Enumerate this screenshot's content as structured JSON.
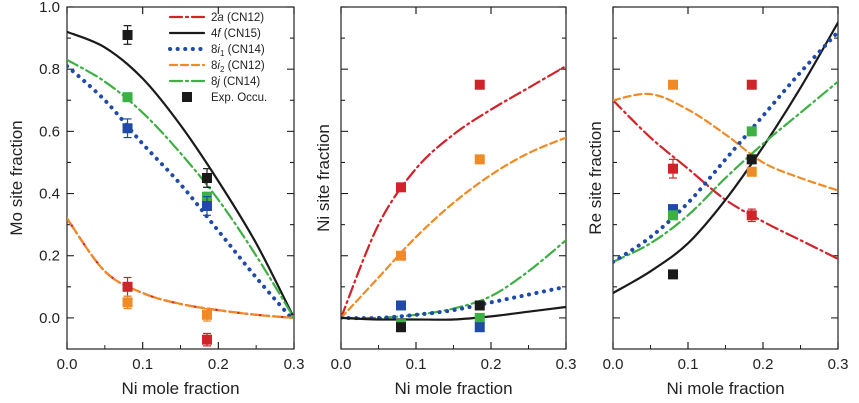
{
  "chart_data": [
    {
      "type": "line",
      "xlabel": "Ni mole fraction",
      "ylabel": "Mo site fraction",
      "xlim": [
        0.0,
        0.3
      ],
      "ylim": [
        -0.1,
        1.0
      ],
      "xticks": [
        "0.0",
        "0.1",
        "0.2",
        "0.3"
      ],
      "yticks": [
        "0.0",
        "0.2",
        "0.4",
        "0.6",
        "0.8",
        "1.0"
      ],
      "series": [
        {
          "name": "4f (CN15)",
          "key": "4f",
          "color": "#1a1a1a",
          "dash": "solid",
          "x": [
            0.0,
            0.05,
            0.1,
            0.15,
            0.2,
            0.25,
            0.3
          ],
          "y": [
            0.92,
            0.87,
            0.77,
            0.62,
            0.44,
            0.24,
            0.0
          ]
        },
        {
          "name": "8j (CN14)",
          "key": "8j",
          "color": "#3cb043",
          "dash": "dashdot",
          "x": [
            0.0,
            0.05,
            0.1,
            0.15,
            0.2,
            0.25,
            0.3
          ],
          "y": [
            0.83,
            0.76,
            0.66,
            0.53,
            0.38,
            0.2,
            0.0
          ]
        },
        {
          "name": "8i1 (CN14)",
          "key": "8i1",
          "color": "#1f4aa8",
          "dash": "dotted",
          "x": [
            0.0,
            0.05,
            0.1,
            0.15,
            0.2,
            0.25,
            0.3
          ],
          "y": [
            0.81,
            0.7,
            0.56,
            0.43,
            0.28,
            0.13,
            -0.01
          ]
        },
        {
          "name": "2a (CN12)",
          "key": "2a",
          "color": "#d0232a",
          "dash": "dashdot",
          "x": [
            0.0,
            0.05,
            0.1,
            0.15,
            0.2,
            0.25,
            0.3
          ],
          "y": [
            0.32,
            0.15,
            0.08,
            0.045,
            0.025,
            0.01,
            0.0
          ]
        },
        {
          "name": "8i2 (CN12)",
          "key": "8i2",
          "color": "#f08a24",
          "dash": "dashed",
          "x": [
            0.0,
            0.05,
            0.1,
            0.15,
            0.2,
            0.25,
            0.3
          ],
          "y": [
            0.32,
            0.15,
            0.08,
            0.045,
            0.025,
            0.01,
            0.0
          ]
        }
      ],
      "points": [
        {
          "series": "Exp. Occu.",
          "color": "#1a1a1a",
          "x": 0.08,
          "y": 0.91,
          "err": 0.03
        },
        {
          "series": "8j",
          "color": "#3cb043",
          "x": 0.08,
          "y": 0.71
        },
        {
          "series": "8i1",
          "color": "#1f4aa8",
          "x": 0.08,
          "y": 0.61,
          "err": 0.03
        },
        {
          "series": "2a",
          "color": "#d0232a",
          "x": 0.08,
          "y": 0.1,
          "err": 0.03
        },
        {
          "series": "8i2",
          "color": "#f08a24",
          "x": 0.08,
          "y": 0.05,
          "err": 0.02
        },
        {
          "series": "Exp. Occu.",
          "color": "#1a1a1a",
          "x": 0.185,
          "y": 0.45,
          "err": 0.03
        },
        {
          "series": "8j",
          "color": "#3cb043",
          "x": 0.185,
          "y": 0.39
        },
        {
          "series": "8i1",
          "color": "#1f4aa8",
          "x": 0.185,
          "y": 0.36,
          "err": 0.03
        },
        {
          "series": "8i2",
          "color": "#f08a24",
          "x": 0.185,
          "y": 0.01,
          "err": 0.02
        },
        {
          "series": "2a",
          "color": "#d0232a",
          "x": 0.185,
          "y": -0.07,
          "err": 0.02
        }
      ]
    },
    {
      "type": "line",
      "xlabel": "Ni mole fraction",
      "ylabel": "Ni site fraction",
      "xlim": [
        0.0,
        0.3
      ],
      "ylim": [
        -0.1,
        1.0
      ],
      "xticks": [
        "0.0",
        "0.1",
        "0.2",
        "0.3"
      ],
      "yticks": [],
      "series": [
        {
          "name": "2a (CN12)",
          "key": "2a",
          "color": "#d0232a",
          "dash": "dashdot",
          "x": [
            0.0,
            0.05,
            0.1,
            0.15,
            0.2,
            0.25,
            0.3
          ],
          "y": [
            0.0,
            0.3,
            0.48,
            0.59,
            0.67,
            0.74,
            0.81
          ]
        },
        {
          "name": "8i2 (CN12)",
          "key": "8i2",
          "color": "#f08a24",
          "dash": "dashed",
          "x": [
            0.0,
            0.05,
            0.1,
            0.15,
            0.2,
            0.25,
            0.3
          ],
          "y": [
            0.0,
            0.13,
            0.26,
            0.37,
            0.46,
            0.53,
            0.58
          ]
        },
        {
          "name": "8j (CN14)",
          "key": "8j",
          "color": "#3cb043",
          "dash": "dashdot",
          "x": [
            0.0,
            0.05,
            0.1,
            0.15,
            0.2,
            0.25,
            0.3
          ],
          "y": [
            0.0,
            0.0,
            0.01,
            0.03,
            0.07,
            0.15,
            0.25
          ]
        },
        {
          "name": "8i1 (CN14)",
          "key": "8i1",
          "color": "#1f4aa8",
          "dash": "dotted",
          "x": [
            0.0,
            0.05,
            0.1,
            0.15,
            0.2,
            0.25,
            0.3
          ],
          "y": [
            0.0,
            0.0,
            0.01,
            0.025,
            0.05,
            0.075,
            0.1
          ]
        },
        {
          "name": "4f (CN15)",
          "key": "4f",
          "color": "#1a1a1a",
          "dash": "solid",
          "x": [
            0.0,
            0.05,
            0.1,
            0.15,
            0.2,
            0.25,
            0.3
          ],
          "y": [
            0.0,
            -0.005,
            -0.005,
            -0.005,
            0.005,
            0.02,
            0.035
          ]
        }
      ],
      "points": [
        {
          "series": "2a",
          "color": "#d0232a",
          "x": 0.08,
          "y": 0.42
        },
        {
          "series": "8i2",
          "color": "#f08a24",
          "x": 0.08,
          "y": 0.2
        },
        {
          "series": "8i1",
          "color": "#1f4aa8",
          "x": 0.08,
          "y": 0.04
        },
        {
          "series": "8j",
          "color": "#3cb043",
          "x": 0.08,
          "y": -0.02
        },
        {
          "series": "Exp. Occu.",
          "color": "#1a1a1a",
          "x": 0.08,
          "y": -0.03
        },
        {
          "series": "2a",
          "color": "#d0232a",
          "x": 0.185,
          "y": 0.75
        },
        {
          "series": "8i2",
          "color": "#f08a24",
          "x": 0.185,
          "y": 0.51
        },
        {
          "series": "Exp. Occu.",
          "color": "#1a1a1a",
          "x": 0.185,
          "y": 0.04
        },
        {
          "series": "8j",
          "color": "#3cb043",
          "x": 0.185,
          "y": 0.0
        },
        {
          "series": "8i1",
          "color": "#1f4aa8",
          "x": 0.185,
          "y": -0.03
        }
      ]
    },
    {
      "type": "line",
      "xlabel": "Ni mole fraction",
      "ylabel": "Re site fraction",
      "xlim": [
        0.0,
        0.3
      ],
      "ylim": [
        -0.1,
        1.0
      ],
      "xticks": [
        "0.0",
        "0.1",
        "0.2",
        "0.3"
      ],
      "yticks": [],
      "series": [
        {
          "name": "2a (CN12)",
          "key": "2a",
          "color": "#d0232a",
          "dash": "dashdot",
          "x": [
            0.0,
            0.05,
            0.1,
            0.15,
            0.2,
            0.25,
            0.3
          ],
          "y": [
            0.7,
            0.58,
            0.48,
            0.38,
            0.31,
            0.25,
            0.19
          ]
        },
        {
          "name": "8i2 (CN12)",
          "key": "8i2",
          "color": "#f08a24",
          "dash": "dashed",
          "x": [
            0.0,
            0.05,
            0.1,
            0.15,
            0.2,
            0.25,
            0.3
          ],
          "y": [
            0.7,
            0.72,
            0.67,
            0.59,
            0.5,
            0.45,
            0.41
          ]
        },
        {
          "name": "4f (CN15)",
          "key": "4f",
          "color": "#1a1a1a",
          "dash": "solid",
          "x": [
            0.0,
            0.05,
            0.1,
            0.15,
            0.2,
            0.25,
            0.3
          ],
          "y": [
            0.08,
            0.15,
            0.24,
            0.38,
            0.55,
            0.74,
            0.95
          ]
        },
        {
          "name": "8j (CN14)",
          "key": "8j",
          "color": "#3cb043",
          "dash": "dashdot",
          "x": [
            0.0,
            0.05,
            0.1,
            0.15,
            0.2,
            0.25,
            0.3
          ],
          "y": [
            0.18,
            0.24,
            0.33,
            0.45,
            0.56,
            0.66,
            0.76
          ]
        },
        {
          "name": "8i1 (CN14)",
          "key": "8i1",
          "color": "#1f4aa8",
          "dash": "dotted",
          "x": [
            0.0,
            0.05,
            0.1,
            0.15,
            0.2,
            0.25,
            0.3
          ],
          "y": [
            0.18,
            0.26,
            0.37,
            0.51,
            0.65,
            0.79,
            0.92
          ]
        }
      ],
      "points": [
        {
          "series": "8i2",
          "color": "#f08a24",
          "x": 0.08,
          "y": 0.75
        },
        {
          "series": "2a",
          "color": "#d0232a",
          "x": 0.08,
          "y": 0.48,
          "err": 0.03
        },
        {
          "series": "8i1",
          "color": "#1f4aa8",
          "x": 0.08,
          "y": 0.35
        },
        {
          "series": "8j",
          "color": "#3cb043",
          "x": 0.08,
          "y": 0.33
        },
        {
          "series": "Exp. Occu.",
          "color": "#1a1a1a",
          "x": 0.08,
          "y": 0.14
        },
        {
          "series": "2a",
          "color": "#d0232a",
          "x": 0.185,
          "y": 0.75
        },
        {
          "series": "8j",
          "color": "#3cb043",
          "x": 0.185,
          "y": 0.6
        },
        {
          "series": "Exp. Occu.",
          "color": "#1a1a1a",
          "x": 0.185,
          "y": 0.51
        },
        {
          "series": "8i2",
          "color": "#f08a24",
          "x": 0.185,
          "y": 0.47
        },
        {
          "series": "2a",
          "color": "#d0232a",
          "x": 0.185,
          "y": 0.33,
          "err": 0.02
        }
      ]
    }
  ],
  "legend": {
    "placement": "top-right of first panel",
    "entries": [
      {
        "key": "2a",
        "label": "2a (CN12)",
        "italic_part": "a",
        "prefix": "2",
        "sub": "",
        "suffix": " (CN12)",
        "color": "#d0232a",
        "dash": "dashdot"
      },
      {
        "key": "4f",
        "label": "4f (CN15)",
        "italic_part": "f",
        "prefix": "4",
        "sub": "",
        "suffix": " (CN15)",
        "color": "#1a1a1a",
        "dash": "solid"
      },
      {
        "key": "8i1",
        "label": "8i1 (CN14)",
        "italic_part": "i",
        "prefix": "8",
        "sub": "1",
        "suffix": " (CN14)",
        "color": "#1f4aa8",
        "dash": "dotted"
      },
      {
        "key": "8i2",
        "label": "8i2 (CN12)",
        "italic_part": "i",
        "prefix": "8",
        "sub": "2",
        "suffix": " (CN12)",
        "color": "#f08a24",
        "dash": "dashed"
      },
      {
        "key": "8j",
        "label": "8j (CN14)",
        "italic_part": "j",
        "prefix": "8",
        "sub": "",
        "suffix": " (CN14)",
        "color": "#3cb043",
        "dash": "dashdot"
      },
      {
        "key": "exp",
        "label": "Exp. Occu.",
        "italic_part": "",
        "prefix": "Exp. Occu.",
        "sub": "",
        "suffix": "",
        "color": "#1a1a1a",
        "dash": "marker"
      }
    ]
  }
}
